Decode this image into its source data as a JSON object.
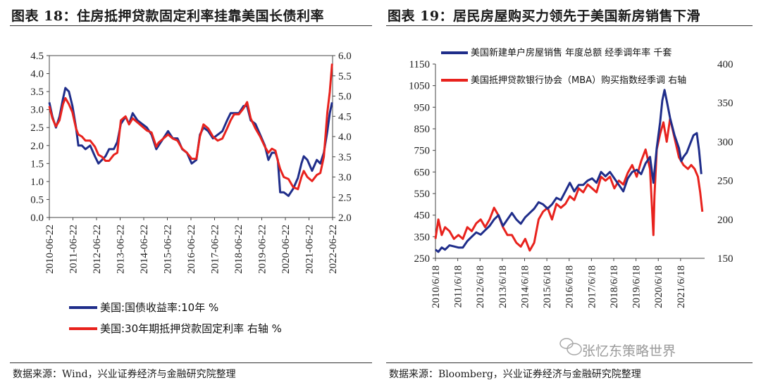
{
  "left_panel": {
    "title": "图表 18：住房抵押贷款固定利率挂靠美国长债利率",
    "source": "数据来源：Wind，兴业证券经济与金融研究院整理"
  },
  "right_panel": {
    "title": "图表 19：居民房屋购买力领先于美国新房销售下滑",
    "source": "数据来源：Bloomberg，兴业证券经济与金融研究院整理"
  },
  "watermark": "张忆东策略世界",
  "colors": {
    "navy": "#1f2d8a",
    "red": "#e8221d"
  },
  "chart_data": [
    {
      "type": "line",
      "title": "",
      "xlabel": "",
      "x_tick_labels": [
        "2010-06-22",
        "2011-06-22",
        "2012-06-22",
        "2013-06-22",
        "2014-06-22",
        "2015-06-22",
        "2016-06-22",
        "2017-06-22",
        "2018-06-22",
        "2019-06-22",
        "2020-06-22",
        "2021-06-22",
        "2022-06-22"
      ],
      "y_left": {
        "ylim": [
          0.0,
          4.5
        ],
        "ticks": [
          "0.0",
          "0.5",
          "1.0",
          "1.5",
          "2.0",
          "2.5",
          "3.0",
          "3.5",
          "4.0",
          "4.5"
        ]
      },
      "y_right": {
        "ylim": [
          2.0,
          6.0
        ],
        "ticks": [
          "2.0",
          "2.5",
          "3.0",
          "3.5",
          "4.0",
          "4.5",
          "5.0",
          "5.5",
          "6.0"
        ]
      },
      "legend_position": "bottom",
      "series": [
        {
          "name": "美国:国债收益率:10年 %",
          "axis": "left",
          "color": "#1f2d8a",
          "x": [
            2010.47,
            2010.6,
            2010.75,
            2010.9,
            2011.05,
            2011.15,
            2011.3,
            2011.45,
            2011.6,
            2011.7,
            2011.85,
            2012.0,
            2012.2,
            2012.4,
            2012.55,
            2012.7,
            2012.85,
            2013.0,
            2013.2,
            2013.35,
            2013.5,
            2013.7,
            2013.85,
            2014.0,
            2014.2,
            2014.4,
            2014.6,
            2014.8,
            2015.0,
            2015.1,
            2015.3,
            2015.5,
            2015.7,
            2015.9,
            2016.1,
            2016.3,
            2016.5,
            2016.7,
            2016.85,
            2017.0,
            2017.2,
            2017.4,
            2017.6,
            2017.8,
            2018.0,
            2018.15,
            2018.3,
            2018.5,
            2018.7,
            2018.85,
            2019.0,
            2019.2,
            2019.4,
            2019.6,
            2019.75,
            2019.9,
            2020.05,
            2020.15,
            2020.25,
            2020.4,
            2020.6,
            2020.8,
            2021.0,
            2021.15,
            2021.25,
            2021.4,
            2021.6,
            2021.8,
            2021.95,
            2022.1,
            2022.25,
            2022.35,
            2022.45
          ],
          "y": [
            3.2,
            2.8,
            2.5,
            2.8,
            3.3,
            3.6,
            3.5,
            3.1,
            2.5,
            2.0,
            2.0,
            1.9,
            2.0,
            1.7,
            1.5,
            1.6,
            1.7,
            1.9,
            1.9,
            2.1,
            2.6,
            2.8,
            2.6,
            2.9,
            2.7,
            2.6,
            2.5,
            2.3,
            1.9,
            2.0,
            2.2,
            2.4,
            2.2,
            2.2,
            1.9,
            1.8,
            1.5,
            1.6,
            2.3,
            2.5,
            2.4,
            2.2,
            2.3,
            2.4,
            2.7,
            2.9,
            2.9,
            2.9,
            3.1,
            3.1,
            2.7,
            2.6,
            2.3,
            2.0,
            1.6,
            1.8,
            1.8,
            1.6,
            0.7,
            0.7,
            0.6,
            0.8,
            1.1,
            1.5,
            1.7,
            1.6,
            1.3,
            1.6,
            1.5,
            1.8,
            2.4,
            2.9,
            3.2
          ]
        },
        {
          "name": "美国:30年期抵押贷款固定利率 右轴 %",
          "axis": "right",
          "color": "#e8221d",
          "x": [
            2010.47,
            2010.6,
            2010.75,
            2010.9,
            2011.05,
            2011.15,
            2011.3,
            2011.45,
            2011.6,
            2011.7,
            2011.85,
            2012.0,
            2012.2,
            2012.4,
            2012.55,
            2012.7,
            2012.85,
            2013.0,
            2013.2,
            2013.35,
            2013.5,
            2013.7,
            2013.85,
            2014.0,
            2014.2,
            2014.4,
            2014.6,
            2014.8,
            2015.0,
            2015.1,
            2015.3,
            2015.5,
            2015.7,
            2015.9,
            2016.1,
            2016.3,
            2016.5,
            2016.7,
            2016.85,
            2017.0,
            2017.2,
            2017.4,
            2017.6,
            2017.8,
            2018.0,
            2018.15,
            2018.3,
            2018.5,
            2018.7,
            2018.85,
            2019.0,
            2019.2,
            2019.4,
            2019.6,
            2019.75,
            2019.9,
            2020.05,
            2020.15,
            2020.25,
            2020.4,
            2020.6,
            2020.8,
            2021.0,
            2021.15,
            2021.25,
            2021.4,
            2021.6,
            2021.8,
            2021.95,
            2022.1,
            2022.25,
            2022.35,
            2022.45
          ],
          "y": [
            4.75,
            4.45,
            4.25,
            4.4,
            4.8,
            4.95,
            4.8,
            4.6,
            4.2,
            4.05,
            4.0,
            3.9,
            3.9,
            3.75,
            3.55,
            3.5,
            3.4,
            3.4,
            3.55,
            3.6,
            4.4,
            4.5,
            4.3,
            4.45,
            4.35,
            4.25,
            4.15,
            4.1,
            3.75,
            3.85,
            3.95,
            4.05,
            3.95,
            3.9,
            3.7,
            3.6,
            3.45,
            3.45,
            4.0,
            4.3,
            4.2,
            4.0,
            3.9,
            3.95,
            4.2,
            4.4,
            4.55,
            4.55,
            4.7,
            4.85,
            4.45,
            4.2,
            4.0,
            3.75,
            3.6,
            3.7,
            3.65,
            3.4,
            3.2,
            3.0,
            2.95,
            2.75,
            2.7,
            3.0,
            3.15,
            3.0,
            2.9,
            3.05,
            3.1,
            3.5,
            4.6,
            5.1,
            5.8
          ]
        }
      ]
    },
    {
      "type": "line",
      "title": "",
      "xlabel": "",
      "x_tick_labels": [
        "2010/6/18",
        "2011/6/18",
        "2012/6/18",
        "2013/6/18",
        "2014/6/18",
        "2015/6/18",
        "2016/6/18",
        "2017/6/18",
        "2018/6/18",
        "2019/6/18",
        "2020/6/18",
        "2021/6/18"
      ],
      "y_left": {
        "ylim": [
          250,
          1150
        ],
        "ticks": [
          "250",
          "350",
          "450",
          "550",
          "650",
          "750",
          "850",
          "950",
          "1050",
          "1150"
        ]
      },
      "y_right": {
        "ylim": [
          150,
          400
        ],
        "ticks": [
          "150",
          "200",
          "250",
          "300",
          "350",
          "400"
        ]
      },
      "legend_position": "top",
      "series": [
        {
          "name": "美国新建单户房屋销售 年度总额 经季调年率 千套",
          "axis": "left",
          "color": "#1f2d8a",
          "x": [
            2010.47,
            2010.6,
            2010.75,
            2010.9,
            2011.1,
            2011.3,
            2011.5,
            2011.7,
            2011.9,
            2012.1,
            2012.3,
            2012.5,
            2012.7,
            2012.9,
            2013.1,
            2013.3,
            2013.5,
            2013.7,
            2013.9,
            2014.1,
            2014.3,
            2014.5,
            2014.7,
            2014.9,
            2015.1,
            2015.3,
            2015.5,
            2015.7,
            2015.9,
            2016.1,
            2016.3,
            2016.5,
            2016.7,
            2016.9,
            2017.1,
            2017.3,
            2017.5,
            2017.7,
            2017.9,
            2018.1,
            2018.3,
            2018.5,
            2018.7,
            2018.9,
            2019.1,
            2019.3,
            2019.5,
            2019.7,
            2019.9,
            2020.1,
            2020.25,
            2020.4,
            2020.55,
            2020.65,
            2020.75,
            2020.85,
            2021.0,
            2021.2,
            2021.4,
            2021.5,
            2021.6,
            2021.75,
            2021.9,
            2022.05,
            2022.2,
            2022.3,
            2022.4
          ],
          "y": [
            290,
            280,
            300,
            290,
            310,
            305,
            300,
            300,
            330,
            350,
            370,
            360,
            380,
            400,
            430,
            450,
            400,
            430,
            460,
            430,
            410,
            440,
            460,
            480,
            510,
            500,
            480,
            500,
            530,
            520,
            560,
            600,
            560,
            590,
            590,
            610,
            620,
            600,
            650,
            630,
            650,
            620,
            590,
            560,
            620,
            650,
            660,
            640,
            690,
            720,
            600,
            760,
            880,
            980,
            1030,
            980,
            900,
            820,
            760,
            700,
            720,
            740,
            780,
            820,
            830,
            750,
            640
          ]
        },
        {
          "name": "美国抵押贷款银行协会（MBA）购买指数经季调 右轴",
          "axis": "right",
          "color": "#e8221d",
          "x": [
            2010.47,
            2010.6,
            2010.75,
            2010.9,
            2011.1,
            2011.3,
            2011.5,
            2011.7,
            2011.9,
            2012.1,
            2012.3,
            2012.5,
            2012.7,
            2012.9,
            2013.1,
            2013.3,
            2013.5,
            2013.7,
            2013.9,
            2014.1,
            2014.3,
            2014.5,
            2014.7,
            2014.9,
            2015.1,
            2015.3,
            2015.5,
            2015.7,
            2015.9,
            2016.1,
            2016.3,
            2016.5,
            2016.7,
            2016.9,
            2017.1,
            2017.3,
            2017.5,
            2017.7,
            2017.9,
            2018.1,
            2018.3,
            2018.5,
            2018.7,
            2018.9,
            2019.1,
            2019.3,
            2019.5,
            2019.7,
            2019.9,
            2020.1,
            2020.25,
            2020.3,
            2020.4,
            2020.55,
            2020.7,
            2020.85,
            2021.0,
            2021.2,
            2021.4,
            2021.6,
            2021.8,
            2021.95,
            2022.1,
            2022.25,
            2022.35,
            2022.45
          ],
          "y": [
            175,
            200,
            180,
            190,
            185,
            175,
            180,
            175,
            190,
            185,
            195,
            200,
            190,
            200,
            215,
            205,
            190,
            180,
            180,
            170,
            165,
            175,
            160,
            170,
            200,
            210,
            215,
            200,
            220,
            215,
            220,
            230,
            225,
            240,
            235,
            245,
            240,
            235,
            255,
            250,
            255,
            240,
            250,
            245,
            260,
            270,
            255,
            275,
            290,
            265,
            180,
            230,
            290,
            310,
            325,
            300,
            330,
            305,
            280,
            270,
            265,
            270,
            265,
            255,
            235,
            210
          ]
        }
      ]
    }
  ]
}
